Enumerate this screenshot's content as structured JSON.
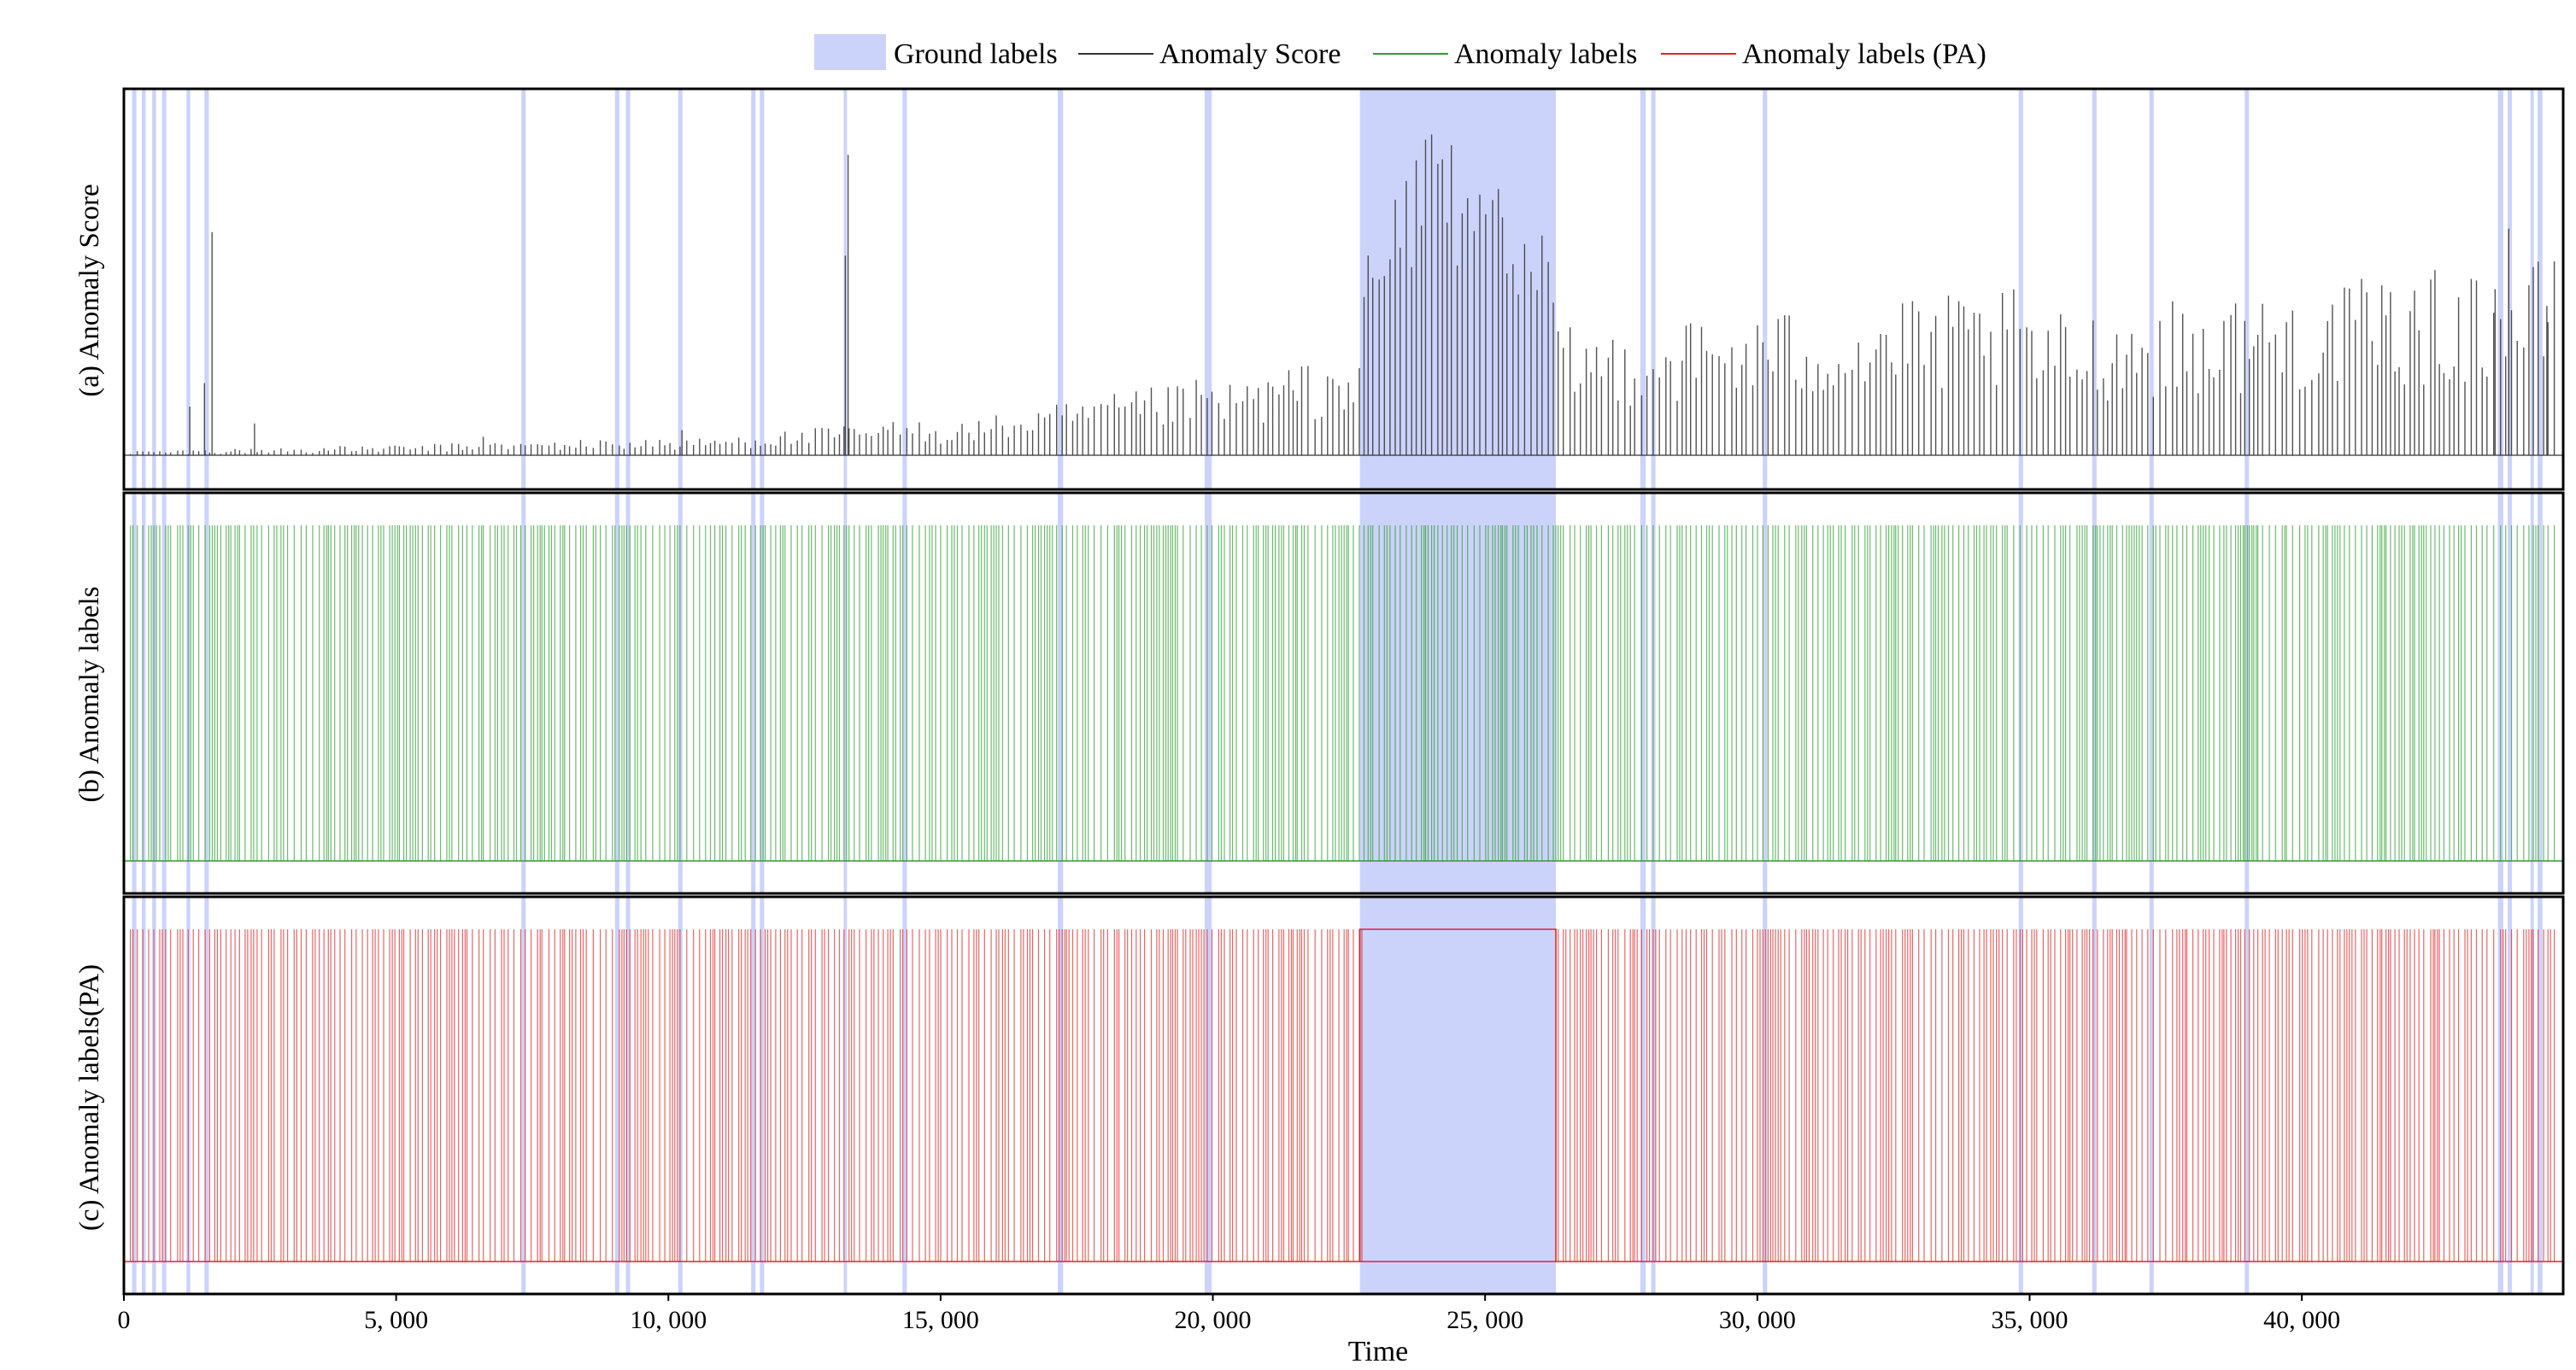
{
  "chart_data": {
    "type": "line",
    "xlabel": "Time",
    "xlim": [
      0,
      44800
    ],
    "x_ticks": [
      0,
      5000,
      10000,
      15000,
      20000,
      25000,
      30000,
      35000,
      40000
    ],
    "x_tick_labels": [
      "0",
      "5, 000",
      "10, 000",
      "15, 000",
      "20, 000",
      "25, 000",
      "30, 000",
      "35, 000",
      "40, 000"
    ],
    "legend": {
      "placement": "top-center",
      "entries": [
        {
          "label": "Ground labels",
          "kind": "patch",
          "color": "#ccd3fa"
        },
        {
          "label": "Anomaly Score",
          "kind": "line",
          "color": "#333333"
        },
        {
          "label": "Anomaly labels",
          "kind": "line",
          "color": "#2e9e2e"
        },
        {
          "label": "Anomaly labels (PA)",
          "kind": "line",
          "color": "#e02424"
        }
      ]
    },
    "ground_label_intervals": [
      [
        150,
        230
      ],
      [
        330,
        400
      ],
      [
        520,
        590
      ],
      [
        700,
        780
      ],
      [
        1150,
        1220
      ],
      [
        1480,
        1560
      ],
      [
        7300,
        7380
      ],
      [
        9020,
        9100
      ],
      [
        9220,
        9300
      ],
      [
        10180,
        10260
      ],
      [
        11520,
        11600
      ],
      [
        11680,
        11760
      ],
      [
        13220,
        13280
      ],
      [
        14300,
        14380
      ],
      [
        17150,
        17250
      ],
      [
        19850,
        19980
      ],
      [
        22700,
        26300
      ],
      [
        27850,
        27950
      ],
      [
        28050,
        28130
      ],
      [
        30100,
        30180
      ],
      [
        34800,
        34880
      ],
      [
        36150,
        36230
      ],
      [
        37200,
        37280
      ],
      [
        38950,
        39030
      ],
      [
        43600,
        43700
      ],
      [
        43780,
        43860
      ],
      [
        44200,
        44260
      ],
      [
        44330,
        44420
      ]
    ],
    "panels": [
      {
        "name": "score",
        "ylabel": "(a) Anomaly Score",
        "color": "#333333",
        "ylim": [
          0,
          1.1
        ],
        "baseline": 0.0,
        "segments": [
          {
            "x": [
              0,
              5000
            ],
            "y": [
              0.015,
              0.03
            ]
          },
          {
            "x": [
              5000,
              10000
            ],
            "y": [
              0.03,
              0.05
            ]
          },
          {
            "x": [
              10000,
              15000
            ],
            "y": [
              0.04,
              0.1
            ]
          },
          {
            "x": [
              15000,
              20000
            ],
            "y": [
              0.08,
              0.2
            ]
          },
          {
            "x": [
              20000,
              22700
            ],
            "y": [
              0.18,
              0.27
            ]
          },
          {
            "x": [
              22700,
              26300
            ],
            "y": [
              0.3,
              1.0
            ]
          },
          {
            "x": [
              26300,
              35000
            ],
            "y": [
              0.32,
              0.42
            ]
          },
          {
            "x": [
              35000,
              44800
            ],
            "y": [
              0.35,
              0.5
            ]
          }
        ],
        "spikes": [
          [
            1210,
            0.15
          ],
          [
            1480,
            0.22
          ],
          [
            1620,
            0.67
          ],
          [
            2400,
            0.1
          ],
          [
            6600,
            0.06
          ],
          [
            10250,
            0.08
          ],
          [
            13250,
            0.6
          ],
          [
            13300,
            0.9
          ],
          [
            43800,
            0.68
          ],
          [
            43550,
            0.5
          ],
          [
            44500,
            0.45
          ]
        ]
      },
      {
        "name": "labels",
        "ylabel": "(b) Anomaly labels",
        "color": "#2e9e2e",
        "ylim": [
          0,
          1.1
        ],
        "baseline": 0.0,
        "spike_value": 1.0
      },
      {
        "name": "labels_pa",
        "ylabel": "(c) Anomaly labels(PA)",
        "color": "#e02424",
        "ylim": [
          0,
          1.1
        ],
        "baseline": 0.0,
        "spike_value": 1.0,
        "filled_interval": [
          22700,
          26300
        ]
      }
    ]
  }
}
